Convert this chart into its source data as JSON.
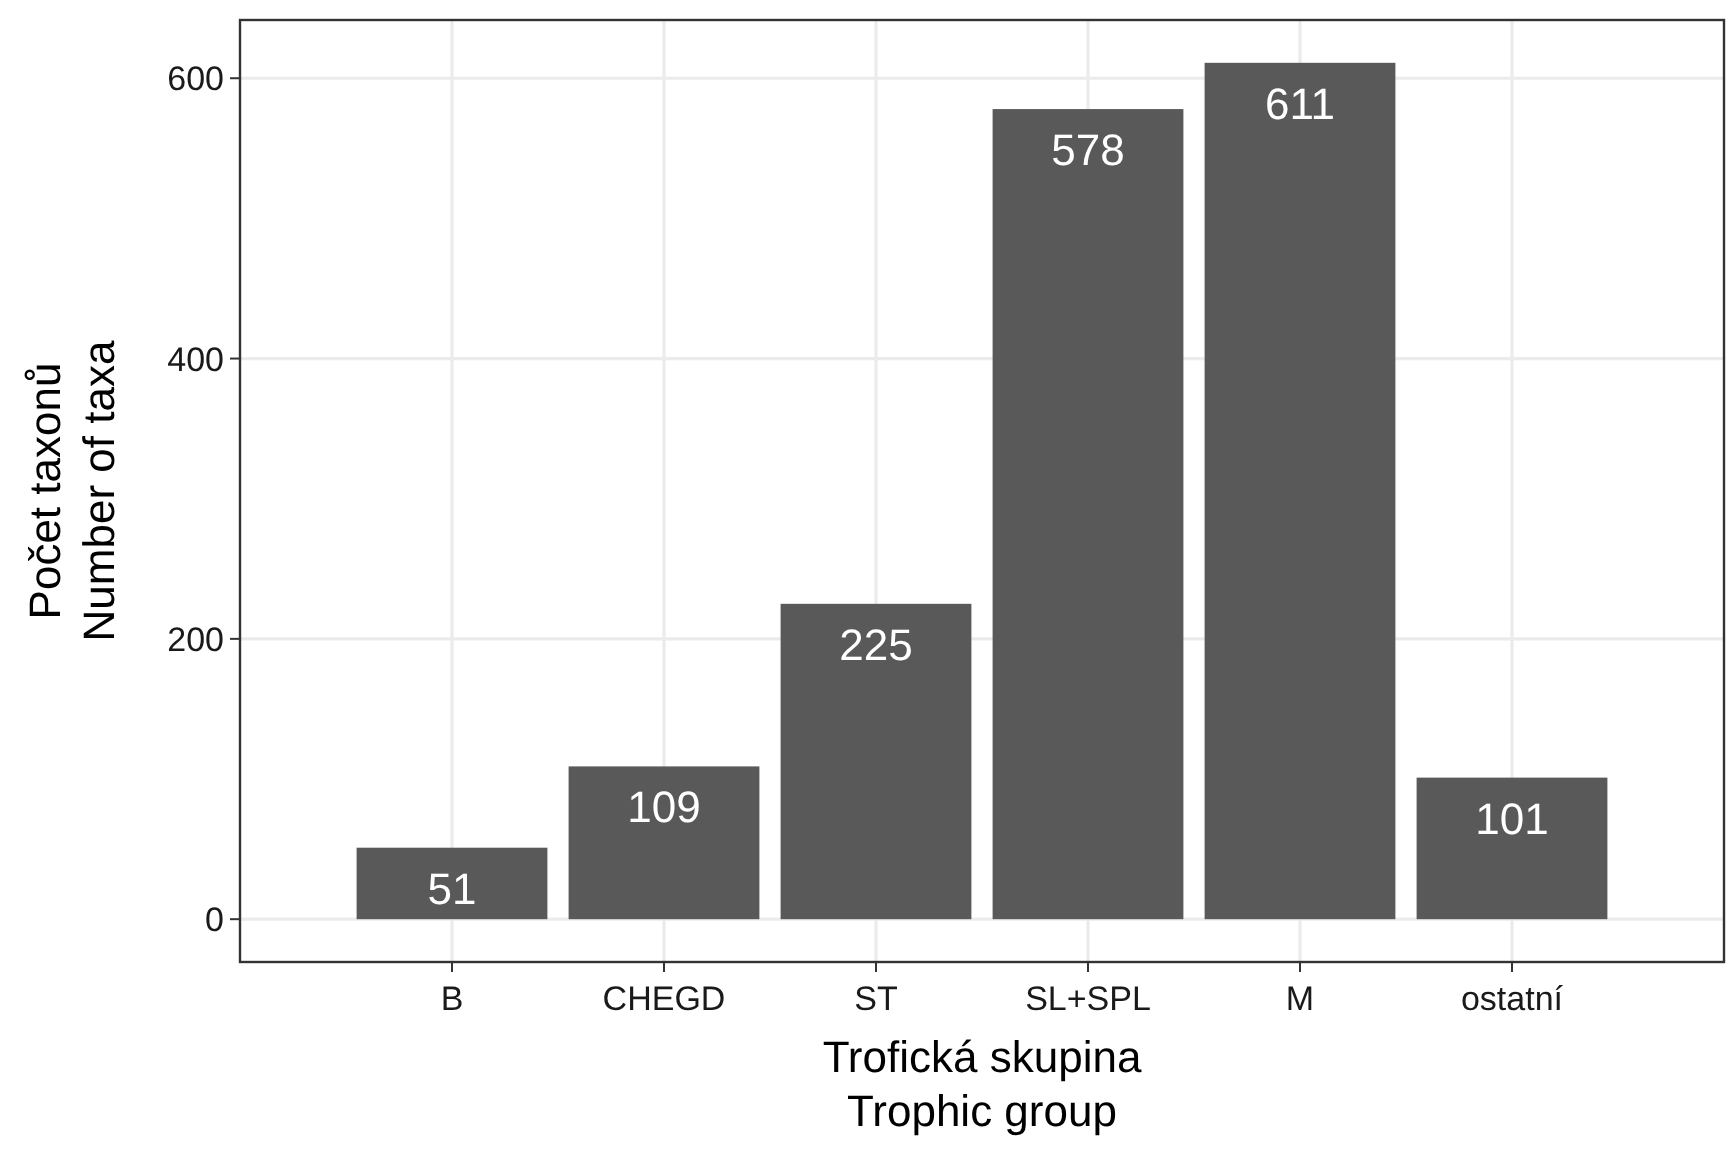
{
  "chart_data": {
    "type": "bar",
    "xlabel": "Trofická skupina\nTrophic group",
    "ylabel": "Počet taxonů\nNumber of taxa",
    "categories": [
      "B",
      "CHEGD",
      "ST",
      "SL+SPL",
      "M",
      "ostatní"
    ],
    "values": [
      51,
      109,
      225,
      578,
      611,
      101
    ],
    "color": "#595959",
    "ylim": [
      -30.55,
      641.55
    ],
    "yticks": [
      0,
      200,
      400,
      600
    ],
    "grid": true,
    "data_labels": true
  }
}
